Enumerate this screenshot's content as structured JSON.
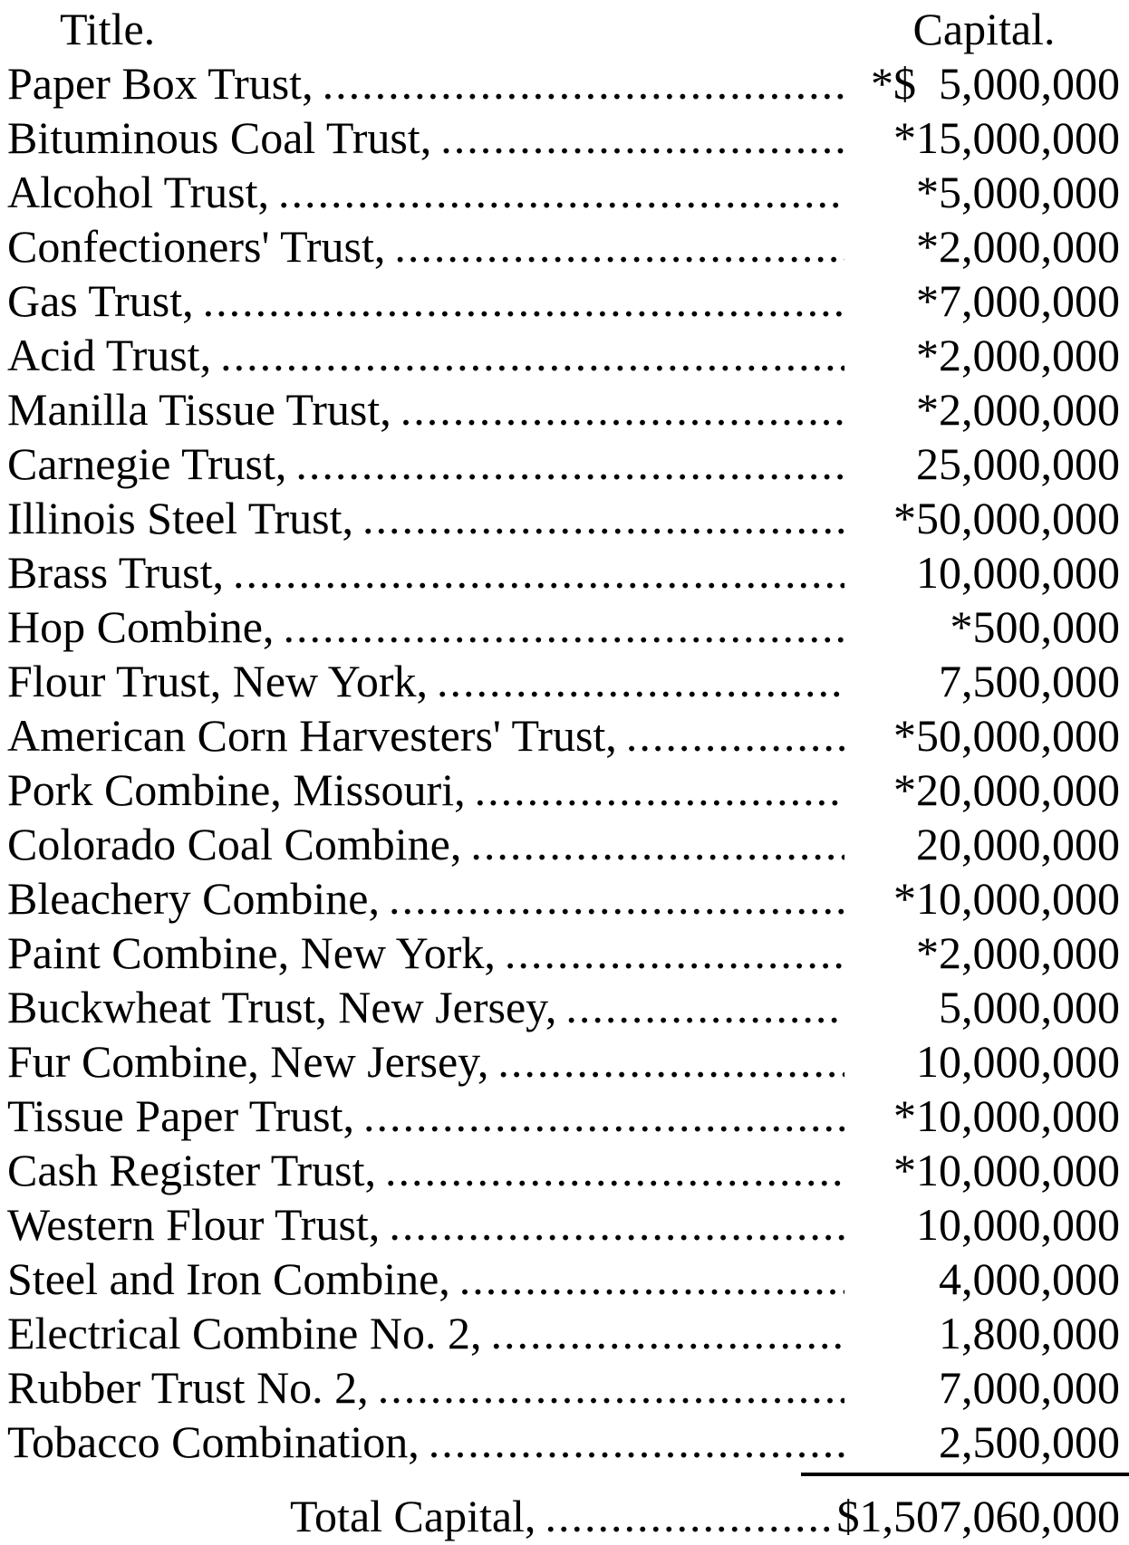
{
  "table": {
    "headers": {
      "title": "Title.",
      "capital": "Capital."
    },
    "leader": "........................................................................................................................",
    "rows": [
      {
        "title": "Paper Box Trust,",
        "capital": "*$  5,000,000"
      },
      {
        "title": "Bituminous Coal Trust,",
        "capital": "*15,000,000"
      },
      {
        "title": "Alcohol Trust,",
        "capital": "*5,000,000"
      },
      {
        "title": "Confectioners' Trust,",
        "capital": "*2,000,000"
      },
      {
        "title": "Gas Trust,",
        "capital": "*7,000,000"
      },
      {
        "title": "Acid Trust,",
        "capital": "*2,000,000"
      },
      {
        "title": "Manilla Tissue Trust,",
        "capital": "*2,000,000"
      },
      {
        "title": "Carnegie Trust,",
        "capital": "25,000,000"
      },
      {
        "title": "Illinois Steel Trust,",
        "capital": "*50,000,000"
      },
      {
        "title": "Brass Trust,",
        "capital": "10,000,000"
      },
      {
        "title": "Hop Combine,",
        "capital": "*500,000"
      },
      {
        "title": "Flour Trust, New York,",
        "capital": "7,500,000"
      },
      {
        "title": "American Corn Harvesters' Trust,",
        "capital": "*50,000,000"
      },
      {
        "title": "Pork Combine, Missouri,",
        "capital": "*20,000,000"
      },
      {
        "title": "Colorado Coal Combine,",
        "capital": "20,000,000"
      },
      {
        "title": "Bleachery Combine,",
        "capital": "*10,000,000"
      },
      {
        "title": "Paint Combine, New York,",
        "capital": "*2,000,000"
      },
      {
        "title": "Buckwheat Trust, New Jersey,",
        "capital": "5,000,000"
      },
      {
        "title": "Fur Combine, New Jersey,",
        "capital": "10,000,000"
      },
      {
        "title": "Tissue Paper Trust,",
        "capital": "*10,000,000"
      },
      {
        "title": "Cash Register Trust,",
        "capital": "*10,000,000"
      },
      {
        "title": "Western Flour Trust,",
        "capital": "10,000,000"
      },
      {
        "title": "Steel and Iron Combine,",
        "capital": "4,000,000"
      },
      {
        "title": "Electrical Combine No. 2,",
        "capital": "1,800,000"
      },
      {
        "title": "Rubber Trust No. 2,",
        "capital": "7,000,000"
      },
      {
        "title": "Tobacco Combination,",
        "capital": "2,500,000"
      }
    ],
    "total": {
      "label": "Total Capital,",
      "amount": "$1,507,060,000"
    }
  }
}
